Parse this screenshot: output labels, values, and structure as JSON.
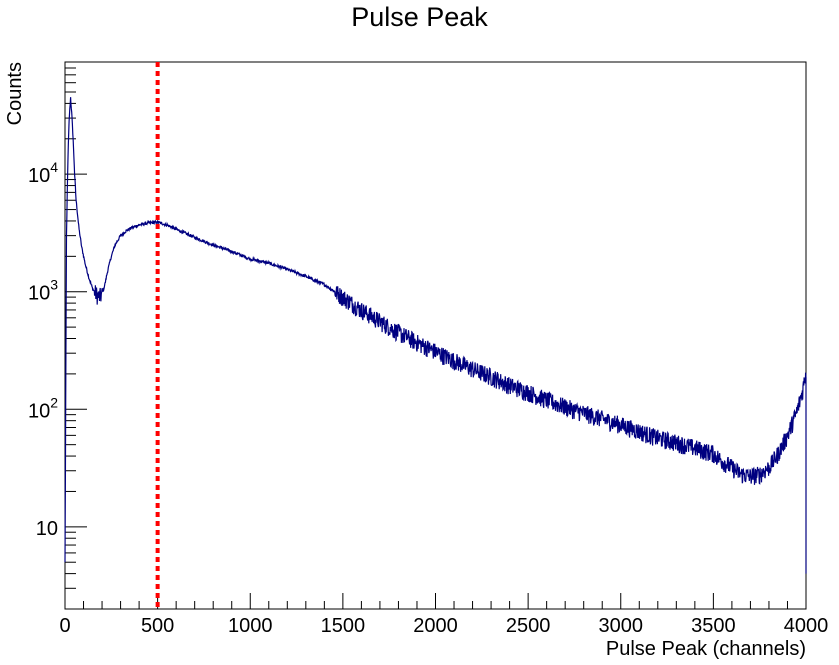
{
  "chart_data": {
    "type": "line",
    "title": "Pulse Peak",
    "xlabel": "Pulse Peak (channels)",
    "ylabel": "Counts",
    "xlim": [
      0,
      4000
    ],
    "ylim": [
      2,
      90000
    ],
    "yscale": "log",
    "grid": false,
    "line_color": "#000080",
    "marker_line": {
      "x": 500,
      "color": "#ff0000",
      "style": "dotted"
    },
    "x_ticks": [
      0,
      500,
      1000,
      1500,
      2000,
      2500,
      3000,
      3500,
      4000
    ],
    "x_tick_labels": [
      "0",
      "500",
      "1000",
      "1500",
      "2000",
      "2500",
      "3000",
      "3500",
      "4000"
    ],
    "y_ticks": [
      10,
      100,
      1000,
      10000
    ],
    "y_tick_labels": [
      {
        "base": "10",
        "exp": ""
      },
      {
        "base": "10",
        "exp": "2"
      },
      {
        "base": "10",
        "exp": "3"
      },
      {
        "base": "10",
        "exp": "4"
      }
    ],
    "series": [
      {
        "x": [
          0,
          8,
          15,
          22,
          30,
          38,
          45,
          52,
          60,
          75,
          90,
          110,
          130,
          150,
          170,
          185,
          200,
          215,
          230,
          250,
          270,
          300,
          330,
          360,
          400,
          450,
          500,
          550,
          600,
          700,
          800,
          900,
          1000,
          1100,
          1200,
          1300,
          1400,
          1500,
          1600,
          1700,
          1800,
          1900,
          2000,
          2100,
          2200,
          2300,
          2400,
          2500,
          2600,
          2700,
          2800,
          2900,
          3000,
          3100,
          3200,
          3300,
          3400,
          3500,
          3550,
          3600,
          3650,
          3700,
          3750,
          3800,
          3850,
          3900,
          3950,
          3980,
          4000
        ],
        "y": [
          5,
          3000,
          12000,
          28000,
          45000,
          30000,
          18000,
          10000,
          6000,
          3500,
          2400,
          1700,
          1300,
          1050,
          950,
          900,
          950,
          1150,
          1500,
          2000,
          2500,
          3000,
          3300,
          3500,
          3700,
          3850,
          3900,
          3700,
          3400,
          2900,
          2500,
          2200,
          1900,
          1750,
          1550,
          1350,
          1150,
          900,
          700,
          560,
          450,
          370,
          310,
          260,
          220,
          190,
          160,
          140,
          120,
          105,
          93,
          83,
          74,
          65,
          57,
          52,
          47,
          42,
          36,
          32,
          28,
          27,
          28,
          32,
          42,
          60,
          95,
          140,
          210
        ]
      }
    ]
  }
}
